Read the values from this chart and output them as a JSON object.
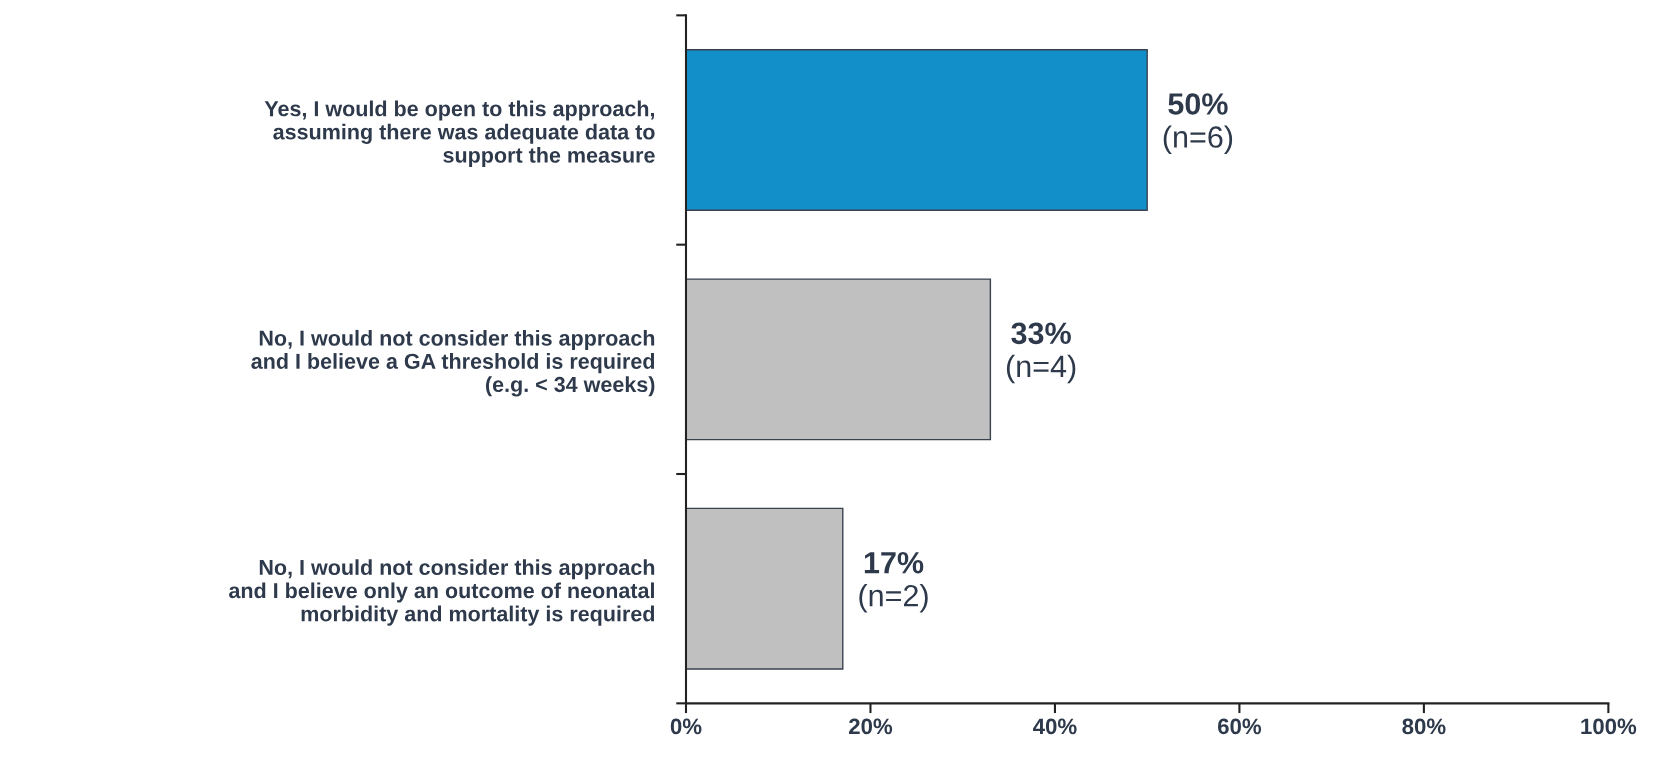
{
  "chart_data": {
    "type": "bar",
    "orientation": "horizontal",
    "categories": [
      "Yes, I would be open to this approach,\nassuming there was adequate data to\nsupport the measure",
      "No, I would not consider this approach\nand I believe a GA threshold is required\n(e.g. < 34 weeks)",
      "No, I would not consider this approach\nand I believe only an outcome of neonatal\nmorbidity and mortality is required"
    ],
    "values": [
      50,
      33,
      17
    ],
    "colors": [
      "#128ec9",
      "#c0c0c0",
      "#c0c0c0"
    ],
    "value_labels": [
      "50%\n(n=6)",
      "33%\n(n=4)",
      "17%\n(n=2)"
    ],
    "xlim": [
      0,
      100
    ],
    "xticks": [
      {
        "value": 0,
        "label": "0%"
      },
      {
        "value": 20,
        "label": "20%"
      },
      {
        "value": 40,
        "label": "40%"
      },
      {
        "value": 60,
        "label": "60%"
      },
      {
        "value": 80,
        "label": "80%"
      },
      {
        "value": 100,
        "label": "100%"
      }
    ],
    "grid": false,
    "legend": false
  }
}
